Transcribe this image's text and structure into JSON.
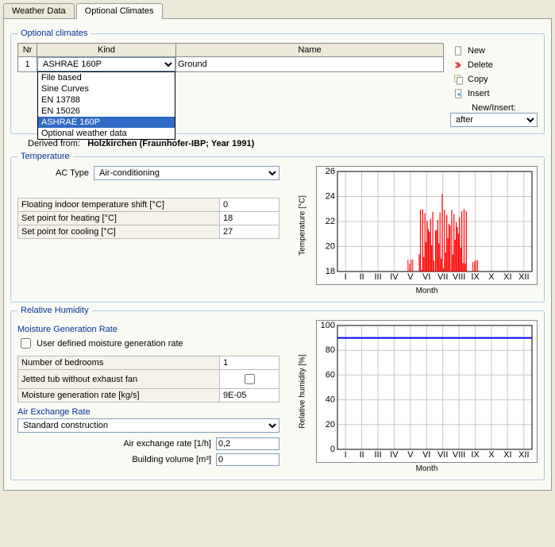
{
  "tabs": {
    "weather": "Weather Data",
    "optional": "Optional Climates"
  },
  "groupbox": {
    "title": "Optional climates"
  },
  "grid": {
    "headers": {
      "nr": "Nr",
      "kind": "Kind",
      "name": "Name"
    },
    "row": {
      "nr": "1",
      "kind_selected": "ASHRAE 160P",
      "name_value": "Ground"
    },
    "dropdown_options": [
      "File based",
      "Sine Curves",
      "EN 13788",
      "EN 15026",
      "ASHRAE 160P",
      "Optional weather data"
    ],
    "dropdown_selected_index": 4
  },
  "actions": {
    "new": "New",
    "delete": "Delete",
    "copy": "Copy",
    "insert": "Insert",
    "newinsert_label": "New/Insert:",
    "position": "after"
  },
  "derived": {
    "label": "Derived from:",
    "value": "Holzkirchen (Fraunhofer-IBP; Year 1991)"
  },
  "temperature": {
    "legend": "Temperature",
    "ac_type_label": "AC Type",
    "ac_type_value": "Air-conditioning",
    "params": [
      {
        "label": "Floating indoor temperature shift  [°C]",
        "value": "0"
      },
      {
        "label": "Set point for heating  [°C]",
        "value": "18"
      },
      {
        "label": "Set point for cooling  [°C]",
        "value": "27"
      }
    ],
    "chart": {
      "ylabel": "Temperature [°C]",
      "xlabel": "Month",
      "ylim": [
        18,
        26
      ],
      "ytick_step": 2,
      "xticks": [
        "I",
        "II",
        "III",
        "IV",
        "V",
        "VI",
        "VII",
        "VIII",
        "IX",
        "X",
        "XI",
        "XII"
      ],
      "series_color": "#ff0000",
      "grid_color": "#c8c8c8",
      "background": "#ffffff",
      "spike_months": [
        6,
        7,
        8
      ],
      "spike_max": 23.0,
      "spike_peak": 24.2,
      "baseline": 18
    }
  },
  "humidity": {
    "legend": "Relative Humidity",
    "moisture_label": "Moisture Generation Rate",
    "user_defined_label": "User defined moisture generation rate",
    "user_defined_checked": false,
    "params": [
      {
        "label": "Number of bedrooms",
        "value": "1"
      },
      {
        "label": "Jetted tub without exhaust fan",
        "checkbox": true,
        "checked": false
      },
      {
        "label": "Moisture generation rate  [kg/s]",
        "value": "9E-05"
      }
    ],
    "air_exchange_label": "Air Exchange Rate",
    "air_exchange_value": "Standard construction",
    "air_rate_label": "Air exchange rate  [1/h]",
    "air_rate_value": "0,2",
    "volume_label": "Building volume  [m³]",
    "volume_value": "0",
    "chart": {
      "ylabel": "Relative humidity [%]",
      "xlabel": "Month",
      "ylim": [
        0,
        100
      ],
      "ytick_step": 20,
      "xticks": [
        "I",
        "II",
        "III",
        "IV",
        "V",
        "VI",
        "VII",
        "VIII",
        "IX",
        "X",
        "XI",
        "XII"
      ],
      "line_value": 90,
      "line_color": "#0000ff",
      "grid_color": "#c8c8c8",
      "background": "#ffffff"
    }
  }
}
